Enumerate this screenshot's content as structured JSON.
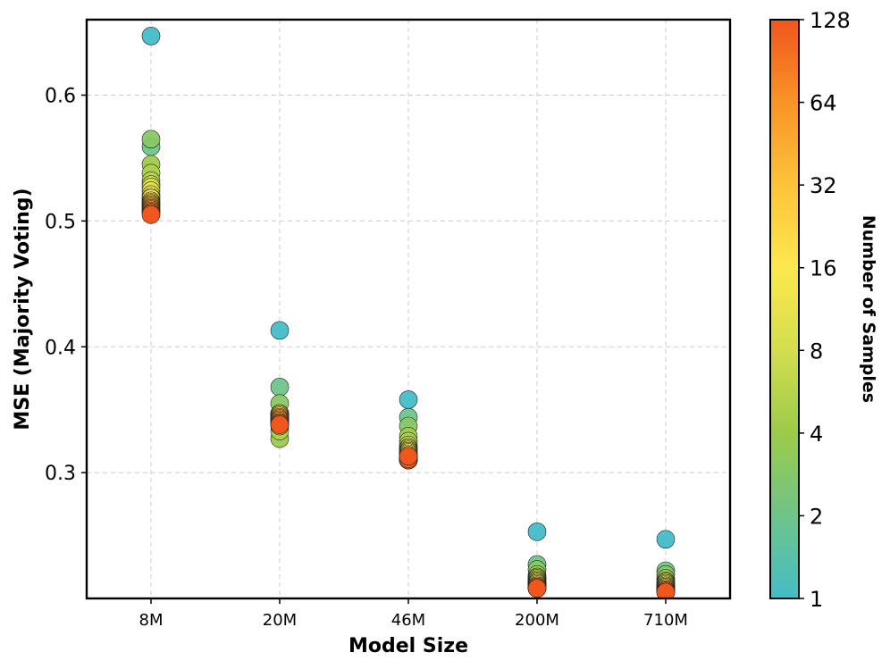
{
  "chart_data": {
    "type": "scatter",
    "title": "",
    "xlabel": "Model Size",
    "ylabel": "MSE (Majority Voting)",
    "categories": [
      "8M",
      "20M",
      "46M",
      "200M",
      "710M"
    ],
    "yticks": [
      0.3,
      0.4,
      0.5,
      0.6
    ],
    "ytick_labels": [
      "0.3",
      "0.4",
      "0.5",
      "0.6"
    ],
    "ylim": [
      0.2,
      0.66
    ],
    "grid": true,
    "colorbar": {
      "label": "Number of Samples",
      "scale": "log2",
      "range": [
        1,
        128
      ],
      "ticks": [
        1,
        2,
        4,
        8,
        16,
        32,
        64,
        128
      ],
      "tick_labels": [
        "1",
        "2",
        "4",
        "8",
        "16",
        "32",
        "64",
        "128"
      ],
      "colors": [
        "#45bdc8",
        "#6fc48a",
        "#9ccb4a",
        "#d3de4e",
        "#fde84e",
        "#fcc33a",
        "#f89426",
        "#f0561d"
      ]
    },
    "samples": [
      1,
      2,
      3,
      4,
      5,
      6,
      7,
      8,
      10,
      12,
      14,
      16,
      20,
      24,
      28,
      32,
      40,
      48,
      56,
      64,
      80,
      96,
      112,
      128
    ],
    "series": [
      {
        "name": "8M",
        "values": [
          0.647,
          0.559,
          0.565,
          0.545,
          0.538,
          0.532,
          0.529,
          0.527,
          0.524,
          0.521,
          0.519,
          0.518,
          0.516,
          0.515,
          0.514,
          0.513,
          0.512,
          0.511,
          0.51,
          0.509,
          0.508,
          0.507,
          0.506,
          0.505
        ]
      },
      {
        "name": "20M",
        "values": [
          0.413,
          0.368,
          0.355,
          0.327,
          0.333,
          0.337,
          0.34,
          0.342,
          0.343,
          0.344,
          0.345,
          0.346,
          0.347,
          0.347,
          0.346,
          0.345,
          0.344,
          0.343,
          0.342,
          0.341,
          0.34,
          0.339,
          0.339,
          0.338
        ]
      },
      {
        "name": "46M",
        "values": [
          0.358,
          0.344,
          0.337,
          0.329,
          0.325,
          0.322,
          0.32,
          0.319,
          0.318,
          0.317,
          0.316,
          0.315,
          0.314,
          0.313,
          0.312,
          0.312,
          0.311,
          0.311,
          0.31,
          0.31,
          0.31,
          0.31,
          0.311,
          0.313
        ]
      },
      {
        "name": "200M",
        "values": [
          0.253,
          0.227,
          0.223,
          0.219,
          0.217,
          0.216,
          0.215,
          0.214,
          0.213,
          0.213,
          0.212,
          0.212,
          0.211,
          0.211,
          0.21,
          0.21,
          0.21,
          0.209,
          0.209,
          0.209,
          0.209,
          0.208,
          0.208,
          0.208
        ]
      },
      {
        "name": "710M",
        "values": [
          0.247,
          0.222,
          0.219,
          0.216,
          0.214,
          0.213,
          0.212,
          0.211,
          0.21,
          0.21,
          0.209,
          0.209,
          0.208,
          0.208,
          0.208,
          0.207,
          0.207,
          0.207,
          0.206,
          0.206,
          0.206,
          0.206,
          0.205,
          0.205
        ]
      }
    ]
  }
}
